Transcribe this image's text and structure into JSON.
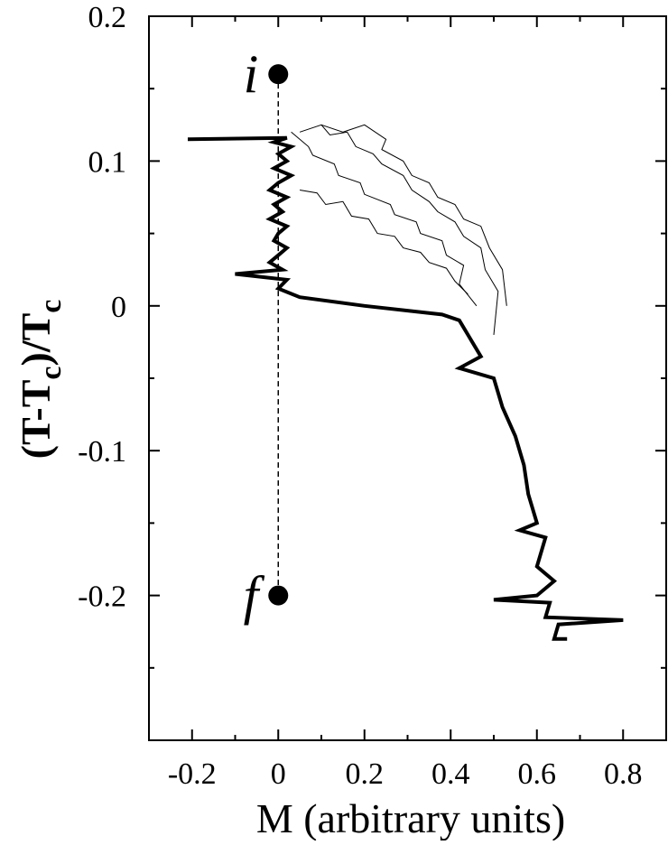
{
  "chart_data": {
    "type": "line",
    "xlabel": "M (arbitrary units)",
    "ylabel": [
      "(T-T",
      "c",
      ")/T",
      "c"
    ],
    "xlim": [
      -0.3,
      0.9
    ],
    "ylim": [
      -0.3,
      0.2
    ],
    "xticks": [
      -0.2,
      0,
      0.2,
      0.4,
      0.6,
      0.8
    ],
    "yticks": [
      -0.2,
      -0.1,
      0,
      0.1,
      0.2
    ],
    "xminorticks": [
      -0.3,
      -0.1,
      0.1,
      0.3,
      0.5,
      0.7,
      0.9
    ],
    "yminorticks": [
      -0.3,
      -0.25,
      -0.15,
      -0.05,
      0.05,
      0.15
    ],
    "annotations": [
      {
        "text": "i",
        "x": 0,
        "y": 0.16
      },
      {
        "text": "f",
        "x": 0,
        "y": -0.2
      }
    ],
    "series": [
      {
        "color": "#000000",
        "width": 4,
        "x": [
          -0.21,
          0.02,
          -0.01,
          0.03,
          0.0,
          0.02,
          -0.01,
          0.03,
          0.0,
          -0.02,
          0.02,
          -0.01,
          0.01,
          -0.02,
          0.02,
          0.0,
          -0.01,
          0.02,
          0.0,
          -0.02,
          0.01,
          -0.1,
          0.02,
          0.0,
          0.05,
          0.2,
          0.38,
          0.42,
          0.44,
          0.47,
          0.42,
          0.5,
          0.52,
          0.55,
          0.57,
          0.58,
          0.6,
          0.56,
          0.62,
          0.6,
          0.64,
          0.6,
          0.5,
          0.63,
          0.62,
          0.8,
          0.65,
          0.64,
          0.67
        ],
        "values": [
          0.115,
          0.116,
          0.113,
          0.11,
          0.105,
          0.1,
          0.095,
          0.09,
          0.085,
          0.08,
          0.075,
          0.07,
          0.065,
          0.06,
          0.055,
          0.05,
          0.045,
          0.04,
          0.035,
          0.03,
          0.025,
          0.022,
          0.018,
          0.012,
          0.006,
          0.0,
          -0.006,
          -0.01,
          -0.02,
          -0.035,
          -0.043,
          -0.05,
          -0.07,
          -0.09,
          -0.11,
          -0.13,
          -0.15,
          -0.155,
          -0.16,
          -0.18,
          -0.19,
          -0.2,
          -0.203,
          -0.205,
          -0.215,
          -0.217,
          -0.22,
          -0.23,
          -0.23
        ]
      },
      {
        "color": "#000000",
        "width": 1,
        "x": [
          0.03,
          0.07,
          0.08,
          0.13,
          0.14,
          0.19,
          0.2,
          0.26,
          0.27,
          0.32,
          0.33,
          0.38,
          0.39,
          0.43,
          0.42,
          0.46
        ],
        "values": [
          0.12,
          0.11,
          0.104,
          0.098,
          0.09,
          0.085,
          0.077,
          0.07,
          0.063,
          0.058,
          0.05,
          0.045,
          0.035,
          0.028,
          0.015,
          0.0
        ]
      },
      {
        "color": "#000000",
        "width": 1,
        "x": [
          0.05,
          0.1,
          0.12,
          0.16,
          0.18,
          0.22,
          0.24,
          0.29,
          0.31,
          0.35,
          0.37,
          0.41,
          0.43,
          0.47,
          0.48,
          0.51,
          0.5
        ],
        "values": [
          0.12,
          0.125,
          0.118,
          0.12,
          0.11,
          0.105,
          0.098,
          0.09,
          0.08,
          0.072,
          0.065,
          0.058,
          0.048,
          0.04,
          0.025,
          0.01,
          -0.02
        ]
      },
      {
        "color": "#000000",
        "width": 1,
        "x": [
          0.1,
          0.15,
          0.2,
          0.25,
          0.24,
          0.29,
          0.31,
          0.35,
          0.37,
          0.41,
          0.43,
          0.47,
          0.49,
          0.52,
          0.53
        ],
        "values": [
          0.125,
          0.12,
          0.125,
          0.115,
          0.108,
          0.1,
          0.09,
          0.085,
          0.075,
          0.07,
          0.06,
          0.055,
          0.04,
          0.025,
          0.0
        ]
      },
      {
        "color": "#000000",
        "width": 1,
        "x": [
          0.05,
          0.09,
          0.11,
          0.15,
          0.17,
          0.21,
          0.23,
          0.27,
          0.29,
          0.33,
          0.35,
          0.39,
          0.41,
          0.44
        ],
        "values": [
          0.08,
          0.078,
          0.07,
          0.072,
          0.062,
          0.06,
          0.05,
          0.048,
          0.04,
          0.037,
          0.03,
          0.026,
          0.017,
          0.008
        ]
      }
    ]
  }
}
